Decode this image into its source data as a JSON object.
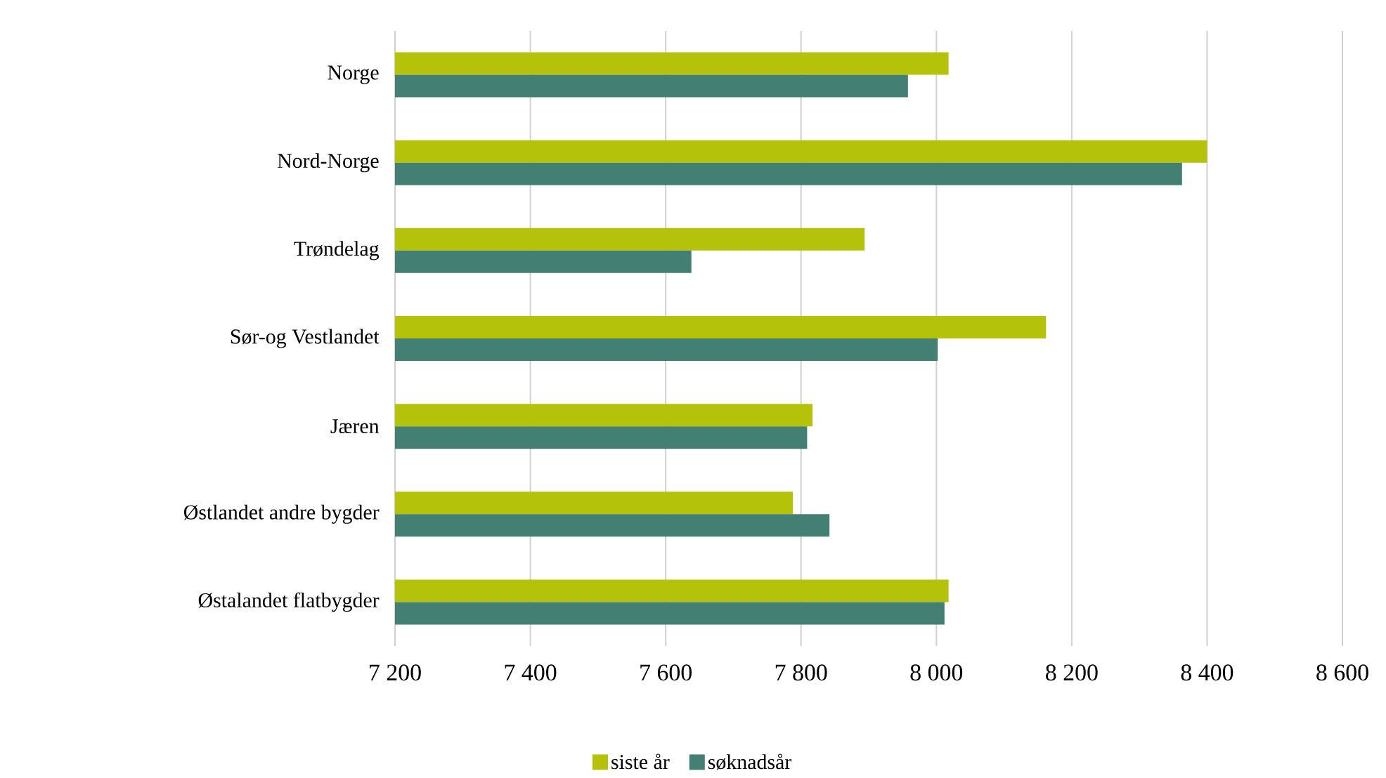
{
  "chart_data": {
    "type": "bar",
    "orientation": "horizontal",
    "categories": [
      "Norge",
      "Nord-Norge",
      "Trøndelag",
      "Sør-og Vestlandet",
      "Jæren",
      "Østlandet andre bygder",
      "Østalandet flatbygder"
    ],
    "series": [
      {
        "name": "siste år",
        "color": "#b5c20a",
        "values": [
          8018,
          8400,
          7894,
          8162,
          7817,
          7788,
          8018
        ]
      },
      {
        "name": "søknadsår",
        "color": "#437f73",
        "values": [
          7958,
          8363,
          7638,
          8002,
          7809,
          7842,
          8012
        ]
      }
    ],
    "xlim": [
      7200,
      8600
    ],
    "xticks": [
      {
        "value": 7200,
        "label": "7 200"
      },
      {
        "value": 7400,
        "label": "7 400"
      },
      {
        "value": 7600,
        "label": "7 600"
      },
      {
        "value": 7800,
        "label": "7 800"
      },
      {
        "value": 8000,
        "label": "8 000"
      },
      {
        "value": 8200,
        "label": "8 200"
      },
      {
        "value": 8400,
        "label": "8 400"
      },
      {
        "value": 8600,
        "label": "8 600"
      }
    ],
    "grid": "x",
    "legend": "bottom"
  }
}
